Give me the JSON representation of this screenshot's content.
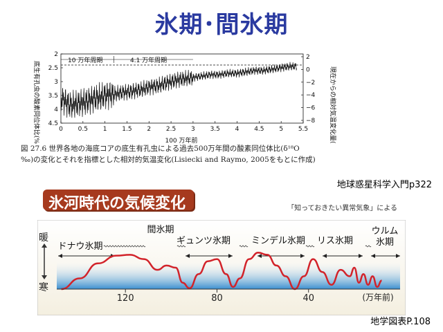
{
  "slide": {
    "title": "氷期･間氷期",
    "source_top": "地球惑星科学入門p322",
    "source_bottom": "地学図表P.108"
  },
  "figure_top": {
    "caption_line1": "図 27.6  世界各地の海底コアの底生有孔虫による過去500万年間の酸素同位体比(δ¹⁸O",
    "caption_line2": "‰)の変化とそれを指標とした相対的気温変化(Lisiecki and Raymo, 2005をもとに作成)"
  },
  "figure_bottom": {
    "banner": "氷河時代の気候変化",
    "reference": "「知っておきたい異常気象」による",
    "axis_warm": "暖",
    "axis_cold": "寒"
  },
  "chart_data": [
    {
      "type": "line",
      "title": "",
      "xlabel": "100 万年前",
      "ylabel": "底生有孔虫の酸素同位体比(‰)",
      "ylabel_right": "現在からの相対気温変化量(℃)",
      "xlim": [
        0,
        5.5
      ],
      "ylim": [
        2,
        4.5
      ],
      "y_inverted": true,
      "x_ticks": [
        "0",
        "0.5",
        "1",
        "1.5",
        "2",
        "2.5",
        "3",
        "3.5",
        "4",
        "4.5",
        "5",
        "5.5"
      ],
      "y_ticks": [
        "2",
        "2.5",
        "3",
        "3.5",
        "4",
        "4.5"
      ],
      "y_right_ticks": [
        "2",
        "0",
        "−2",
        "−4",
        "−6",
        "−8"
      ],
      "annotations": [
        "10 万年周期",
        "4.1 万年周期"
      ],
      "grid": false,
      "series": [
        {
          "x": [
            0,
            0.2,
            0.4,
            0.6,
            0.8,
            1.0,
            1.2,
            1.4,
            1.6,
            1.8,
            2.0,
            2.2,
            2.4,
            2.6,
            2.8,
            3.0,
            3.2,
            3.4,
            3.6,
            3.8,
            4.0,
            4.2,
            4.4,
            4.6,
            4.8,
            5.0,
            5.2
          ],
          "values": [
            3.6,
            3.85,
            3.8,
            3.7,
            3.6,
            3.5,
            3.45,
            3.4,
            3.35,
            3.3,
            3.2,
            3.15,
            3.05,
            2.95,
            2.9,
            2.85,
            2.8,
            2.75,
            2.75,
            2.7,
            2.7,
            2.65,
            2.6,
            2.6,
            2.55,
            2.5,
            2.45
          ]
        }
      ]
    },
    {
      "type": "line",
      "title": "",
      "xlabel": "(万年前)",
      "ylabel": "",
      "xlim": [
        150,
        0
      ],
      "x_ticks": [
        "120",
        "80",
        "40"
      ],
      "ylim": [
        0,
        1
      ],
      "period_labels": [
        "ドナウ氷期",
        "間氷期",
        "ギュンツ氷期",
        "ミンデル氷期",
        "リス氷期",
        "ウルム",
        "氷期"
      ],
      "grid": false,
      "series": [
        {
          "x": [
            148,
            140,
            132,
            124,
            118,
            112,
            106,
            102,
            98,
            95,
            92,
            88,
            84,
            80,
            76,
            73,
            70,
            66,
            62,
            58,
            54,
            50,
            46,
            42,
            38,
            34,
            30,
            26,
            22,
            20,
            18,
            16,
            14,
            12,
            10,
            8
          ],
          "values": [
            0.0,
            0.25,
            0.6,
            0.78,
            0.8,
            0.7,
            0.45,
            0.55,
            0.5,
            0.15,
            0.02,
            0.35,
            0.65,
            0.7,
            0.35,
            0.05,
            0.25,
            0.7,
            0.85,
            0.8,
            0.55,
            0.3,
            0.0,
            0.3,
            0.7,
            0.4,
            0.1,
            0.45,
            0.3,
            0.5,
            0.15,
            0.35,
            0.1,
            0.3,
            0.05,
            0.2
          ]
        }
      ]
    }
  ]
}
